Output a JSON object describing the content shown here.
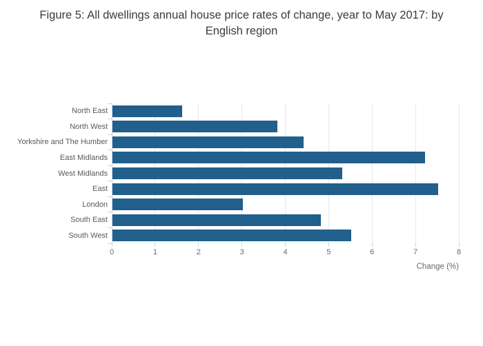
{
  "chart_data": {
    "type": "bar",
    "orientation": "horizontal",
    "title": "Figure 5: All dwellings annual house price rates of change, year to May 2017: by English region",
    "categories": [
      "North East",
      "North West",
      "Yorkshire and The Humber",
      "East Midlands",
      "West Midlands",
      "East",
      "London",
      "South East",
      "South West"
    ],
    "values": [
      1.6,
      3.8,
      4.4,
      7.2,
      5.3,
      7.5,
      3.0,
      4.8,
      5.5
    ],
    "xlabel": "Change (%)",
    "ylabel": "",
    "xlim": [
      0,
      8
    ],
    "xticks": [
      0,
      1,
      2,
      3,
      4,
      5,
      6,
      7,
      8
    ],
    "grid": true,
    "legend": false,
    "colors": {
      "bar": "#215f8c",
      "gridline": "#e6e6e6",
      "axis": "#c6d3e4",
      "title_text": "#3b3b3b",
      "tick_text": "#696969",
      "category_text": "#595959",
      "background": "#ffffff"
    }
  }
}
